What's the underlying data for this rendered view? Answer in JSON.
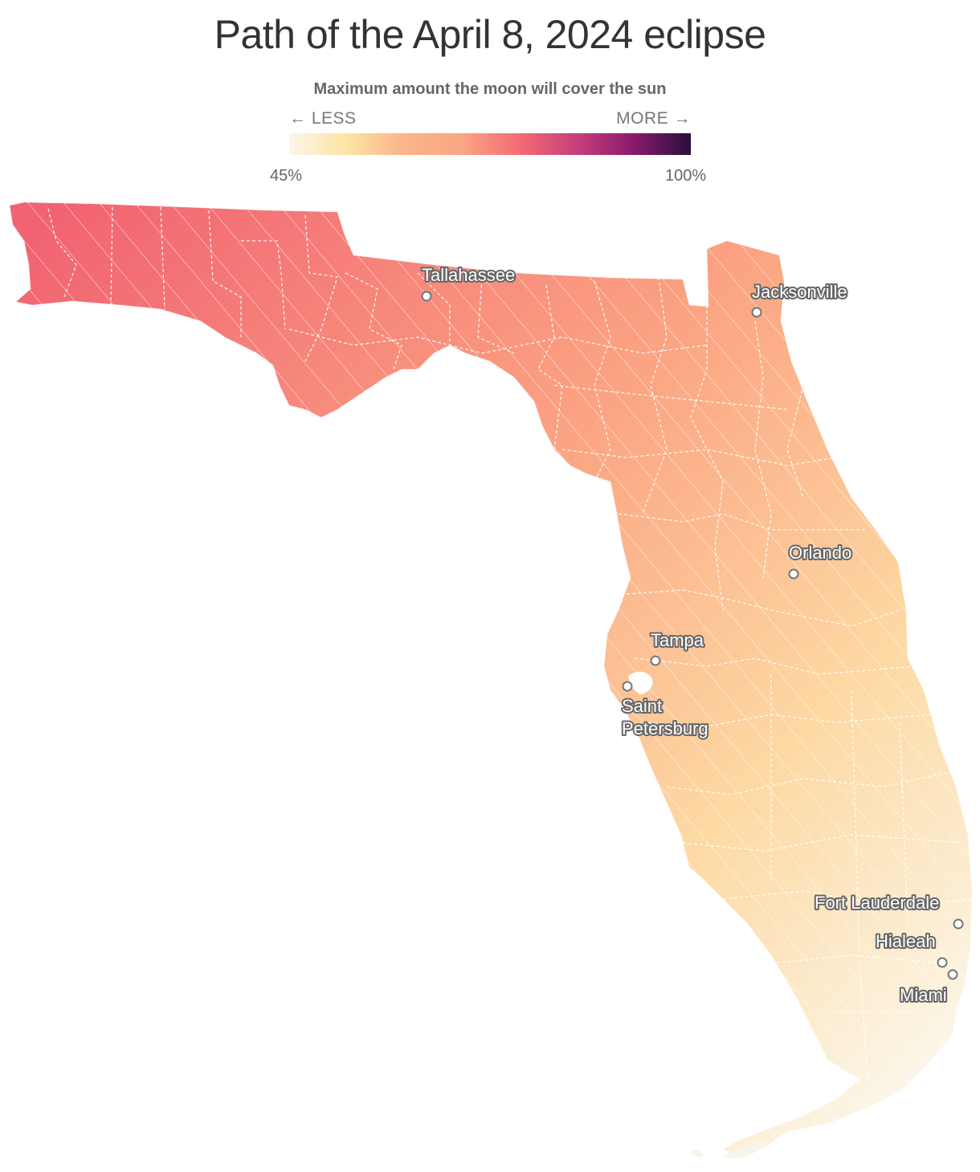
{
  "title": "Path of the April 8, 2024 eclipse",
  "legend": {
    "title": "Maximum amount the moon will cover the sun",
    "less_label": "← LESS",
    "more_label": "MORE →",
    "min_label": "45%",
    "max_label": "100%",
    "colors": [
      "#fbf6ea",
      "#fde4a5",
      "#fbb48b",
      "#f9a683",
      "#f36c74",
      "#c83f7a",
      "#8a1a6e",
      "#2a0f3c"
    ]
  },
  "map": {
    "region": "Florida",
    "fill_colors": {
      "panhandle_west": "#f16372",
      "big_bend": "#fba482",
      "central": "#fdd9a3",
      "south": "#fbf8ec"
    },
    "cities": [
      {
        "name": "Tallahassee",
        "label_lines": [
          "Tallahassee"
        ]
      },
      {
        "name": "Jacksonville",
        "label_lines": [
          "Jacksonville"
        ]
      },
      {
        "name": "Orlando",
        "label_lines": [
          "Orlando"
        ]
      },
      {
        "name": "Tampa",
        "label_lines": [
          "Tampa"
        ]
      },
      {
        "name": "Saint Petersburg",
        "label_lines": [
          "Saint",
          "Petersburg"
        ]
      },
      {
        "name": "Fort Lauderdale",
        "label_lines": [
          "Fort Lauderdale"
        ]
      },
      {
        "name": "Hialeah",
        "label_lines": [
          "Hialeah"
        ]
      },
      {
        "name": "Miami",
        "label_lines": [
          "Miami"
        ]
      }
    ]
  }
}
